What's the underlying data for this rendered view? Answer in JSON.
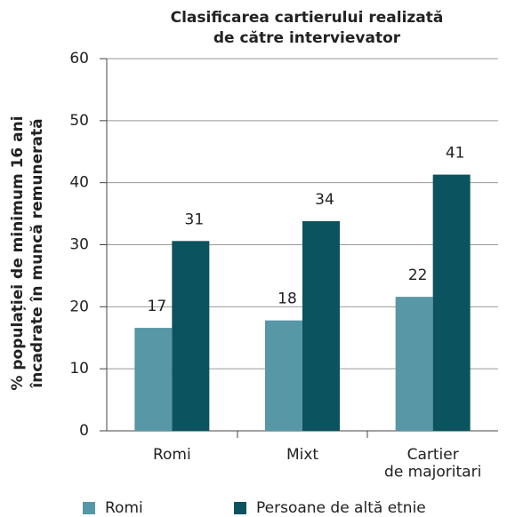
{
  "chart_data": {
    "type": "bar",
    "title": [
      "Clasificarea cartierului realizată",
      "de către intervievator"
    ],
    "ylabel": [
      "% populației de minimum 16 ani",
      "încadrate în muncă remunerată"
    ],
    "categories": [
      "Romi",
      "Mixt",
      "Cartier\nde majoritari"
    ],
    "series": [
      {
        "name": "Romi",
        "color": "#5897a5",
        "values": [
          16.6,
          17.8,
          21.6
        ],
        "value_labels": [
          "17",
          "18",
          "22"
        ]
      },
      {
        "name": "Persoane de altă etnie",
        "color": "#0b535e",
        "values": [
          30.6,
          33.8,
          41.3
        ],
        "value_labels": [
          "31",
          "34",
          "41"
        ]
      }
    ],
    "ylim": [
      0,
      60
    ],
    "yticks": [
      0,
      10,
      20,
      30,
      40,
      50,
      60
    ],
    "grid": true
  }
}
